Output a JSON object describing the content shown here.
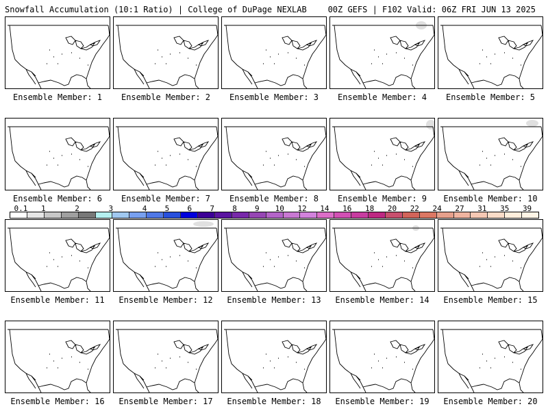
{
  "header": {
    "left": "Snowfall Accumulation (10:1 Ratio) | College of DuPage NEXLAB",
    "right": "00Z GEFS | F102 Valid: 06Z FRI JUN 13 2025"
  },
  "panels": [
    {
      "label": "Ensemble Member: 1"
    },
    {
      "label": "Ensemble Member: 2"
    },
    {
      "label": "Ensemble Member: 3"
    },
    {
      "label": "Ensemble Member: 4"
    },
    {
      "label": "Ensemble Member: 5"
    },
    {
      "label": "Ensemble Member: 6"
    },
    {
      "label": "Ensemble Member: 7"
    },
    {
      "label": "Ensemble Member: 8"
    },
    {
      "label": "Ensemble Member: 9"
    },
    {
      "label": "Ensemble Member: 10"
    },
    {
      "label": "Ensemble Member: 11"
    },
    {
      "label": "Ensemble Member: 12"
    },
    {
      "label": "Ensemble Member: 13"
    },
    {
      "label": "Ensemble Member: 14"
    },
    {
      "label": "Ensemble Member: 15"
    },
    {
      "label": "Ensemble Member: 16"
    },
    {
      "label": "Ensemble Member: 17"
    },
    {
      "label": "Ensemble Member: 18"
    },
    {
      "label": "Ensemble Member: 19"
    },
    {
      "label": "Ensemble Member: 20"
    }
  ],
  "colorbar": {
    "labels": [
      "0.1",
      "1",
      "2",
      "3",
      "4",
      "5",
      "6",
      "7",
      "8",
      "9",
      "10",
      "12",
      "14",
      "16",
      "18",
      "20",
      "22",
      "24",
      "27",
      "31",
      "35",
      "39"
    ],
    "colors": [
      "#ffffff",
      "#e6e6e6",
      "#c8c8c8",
      "#a0a0a0",
      "#787878",
      "#b4f0f0",
      "#a0c8f0",
      "#78a0f0",
      "#5078e6",
      "#2850dc",
      "#0000dc",
      "#3c0096",
      "#5a14a0",
      "#7828aa",
      "#9646b4",
      "#b464c8",
      "#c878d2",
      "#d282dc",
      "#dc6ec8",
      "#d250b4",
      "#c83ca0",
      "#be2882",
      "#c8506e",
      "#d2645a",
      "#dc7864",
      "#e6a08c",
      "#f0b4a0",
      "#f5c8b4",
      "#fadcc8",
      "#ffeedc",
      "#fff5e6"
    ]
  }
}
